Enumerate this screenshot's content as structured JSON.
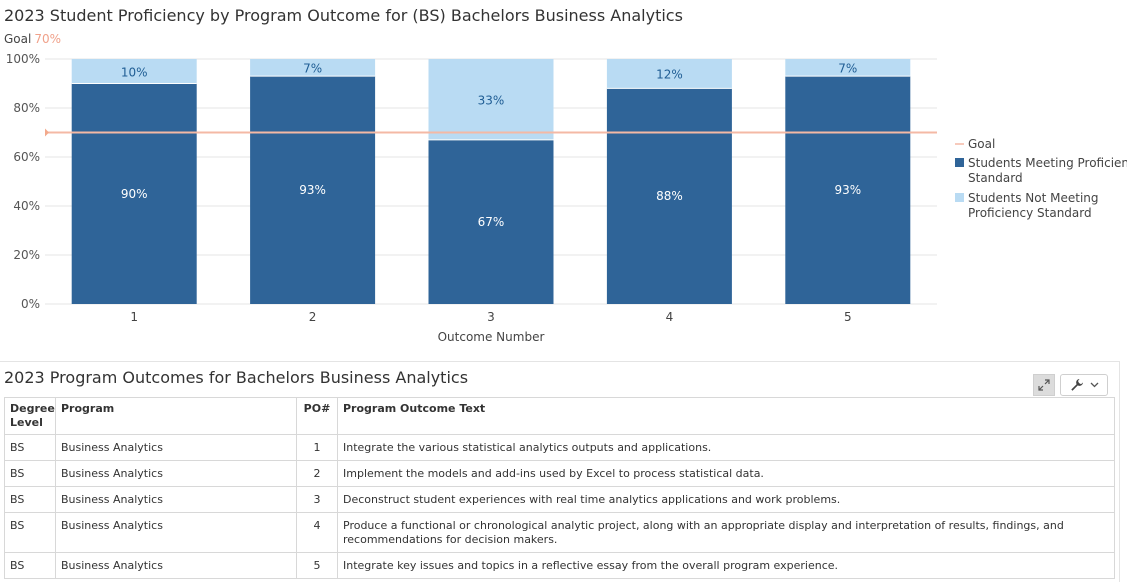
{
  "chart": {
    "title": "2023 Student Proficiency by Program Outcome for (BS) Bachelors Business Analytics",
    "goal_label": "Goal",
    "goal_value_text": "70%"
  },
  "chart_data": {
    "type": "bar",
    "stacked": true,
    "title": "2023 Student Proficiency by Program Outcome for (BS) Bachelors Business Analytics",
    "xlabel": "Outcome Number",
    "ylabel": "",
    "ylim": [
      0,
      100
    ],
    "yticks": [
      "0%",
      "20%",
      "40%",
      "60%",
      "80%",
      "100%"
    ],
    "categories": [
      "1",
      "2",
      "3",
      "4",
      "5"
    ],
    "series": [
      {
        "name": "Students Meeting Proficiency Standard",
        "values": [
          90,
          93,
          67,
          88,
          93
        ],
        "labels": [
          "90%",
          "93%",
          "67%",
          "88%",
          "93%"
        ],
        "color": "#2f6498"
      },
      {
        "name": "Students Not Meeting Proficiency Standard",
        "values": [
          10,
          7,
          33,
          12,
          7
        ],
        "labels": [
          "10%",
          "7%",
          "33%",
          "12%",
          "7%"
        ],
        "color": "#b9dbf3"
      }
    ],
    "goal": {
      "name": "Goal",
      "value": 70,
      "color": "#f4b9a5"
    },
    "legend": [
      "Goal",
      "Students Meeting Proficiency Standard",
      "Students Not Meeting Proficiency Standard"
    ],
    "legend_position": "right",
    "grid": true
  },
  "table": {
    "title": "2023 Program Outcomes for Bachelors Business Analytics",
    "headers": {
      "degree": "Degree Level",
      "program": "Program",
      "po": "PO#",
      "text": "Program Outcome Text"
    },
    "rows": [
      {
        "degree": "BS",
        "program": "Business Analytics",
        "po": "1",
        "text": "Integrate the various statistical analytics outputs and applications."
      },
      {
        "degree": "BS",
        "program": "Business Analytics",
        "po": "2",
        "text": "Implement the models and add-ins used by Excel to process statistical data."
      },
      {
        "degree": "BS",
        "program": "Business Analytics",
        "po": "3",
        "text": "Deconstruct student experiences with real time analytics applications and work problems."
      },
      {
        "degree": "BS",
        "program": "Business Analytics",
        "po": "4",
        "text": "Produce a functional or chronological analytic project, along with an appropriate display and interpretation of results, findings, and recommendations for decision makers."
      },
      {
        "degree": "BS",
        "program": "Business Analytics",
        "po": "5",
        "text": "Integrate key issues and topics in a reflective essay from the overall program experience."
      }
    ]
  },
  "toolbar": {
    "expand_icon": "expand-icon",
    "wrench_icon": "wrench-icon",
    "chevron_icon": "chevron-down-icon"
  }
}
